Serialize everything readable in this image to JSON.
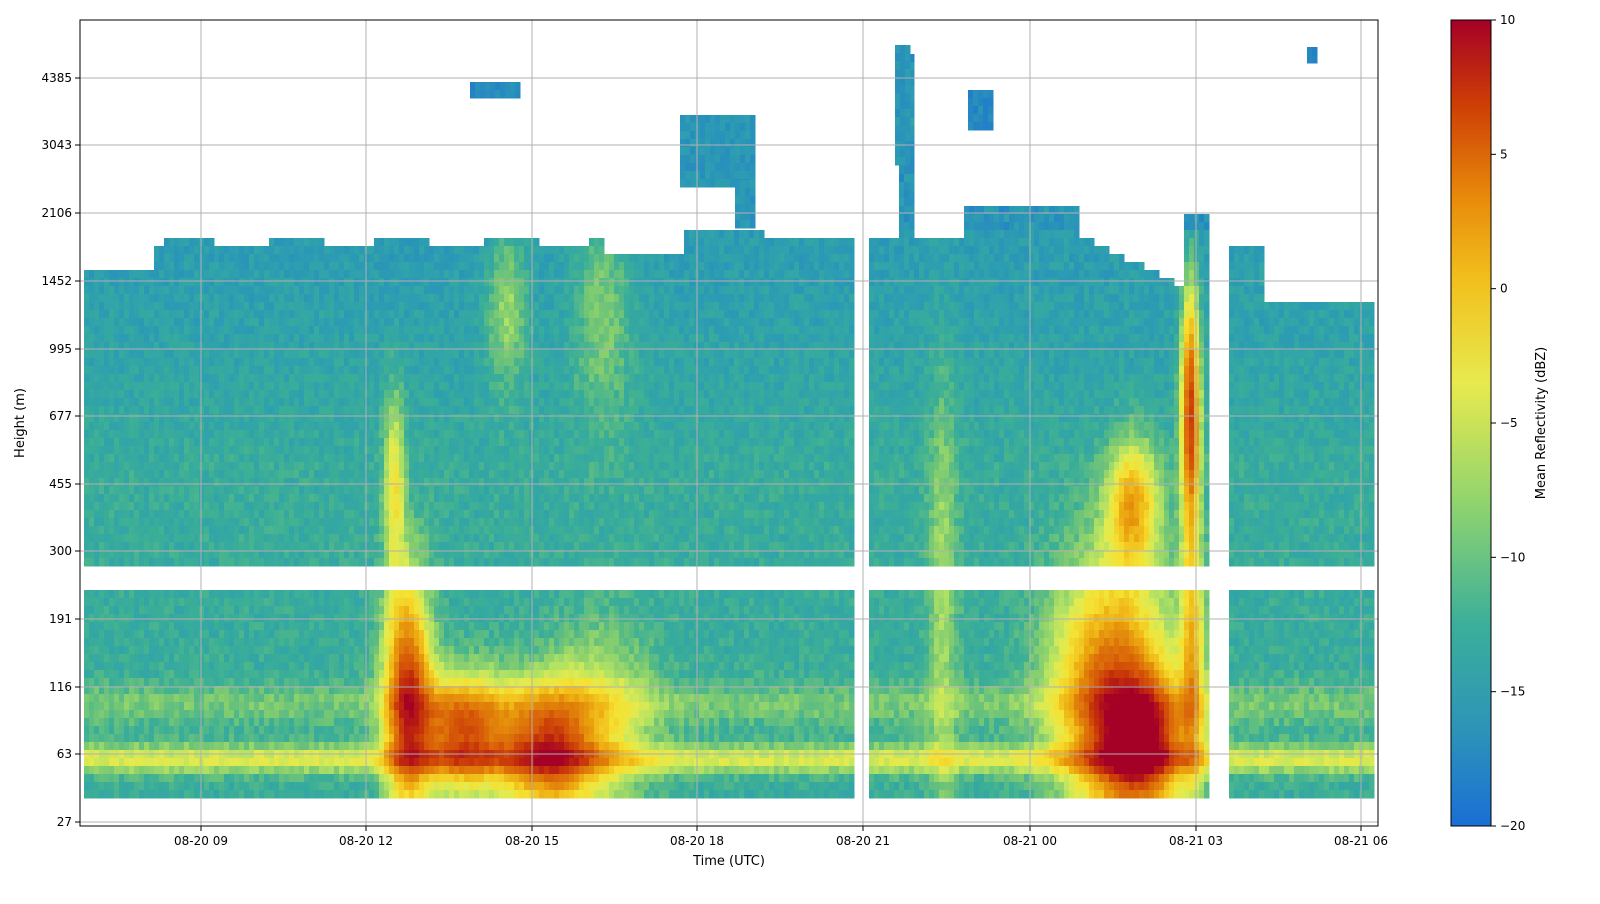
{
  "chart_data": {
    "type": "heatmap",
    "title": "",
    "xlabel": "Time (UTC)",
    "ylabel": "Height (m)",
    "colorbar_label": "Mean Reflectivity (dBZ)",
    "colormap": "Spectral_r",
    "clim": [
      -20,
      10
    ],
    "colorbar_ticks": [
      "10",
      "5",
      "0",
      "−5",
      "−10",
      "−15",
      "−20"
    ],
    "x_tick_labels": [
      "08-20 09",
      "08-20 12",
      "08-20 15",
      "08-20 18",
      "08-20 21",
      "08-21 00",
      "08-21 03",
      "08-21 06"
    ],
    "y_tick_labels": [
      "27",
      "63",
      "116",
      "191",
      "300",
      "455",
      "677",
      "995",
      "1452",
      "2106",
      "3043",
      "4385"
    ],
    "grid": true,
    "colors": {
      "low": "#1a7fc4",
      "mid_low": "#3ba99b",
      "mid": "#9fd86a",
      "mid_high": "#f0e63c",
      "high": "#e07a10",
      "max": "#a50026"
    },
    "data_summary": {
      "time_range": [
        "08-20 06:50",
        "08-21 06:00"
      ],
      "height_range_m": [
        27,
        5300
      ],
      "features": [
        {
          "name": "strong echo near surface",
          "time_start": "08-20 12:15",
          "time_end": "08-20 16:00",
          "height_max_m": 240,
          "peak_dBZ": 9
        },
        {
          "name": "strong echo near surface",
          "time_start": "08-21 00:30",
          "time_end": "08-21 02:30",
          "height_max_m": 300,
          "peak_dBZ": 9
        },
        {
          "name": "convective column",
          "time_start": "08-21 02:35",
          "time_end": "08-21 03:00",
          "height_max_m": 2000,
          "peak_dBZ": 8
        },
        {
          "name": "upper cloud",
          "time_start": "08-20 17:40",
          "time_end": "08-20 19:00",
          "height_min_m": 2300,
          "height_max_m": 3500,
          "peak_dBZ": -17
        },
        {
          "name": "background boundary layer",
          "height_max_m": 1800,
          "typical_dBZ": -14
        }
      ]
    }
  }
}
